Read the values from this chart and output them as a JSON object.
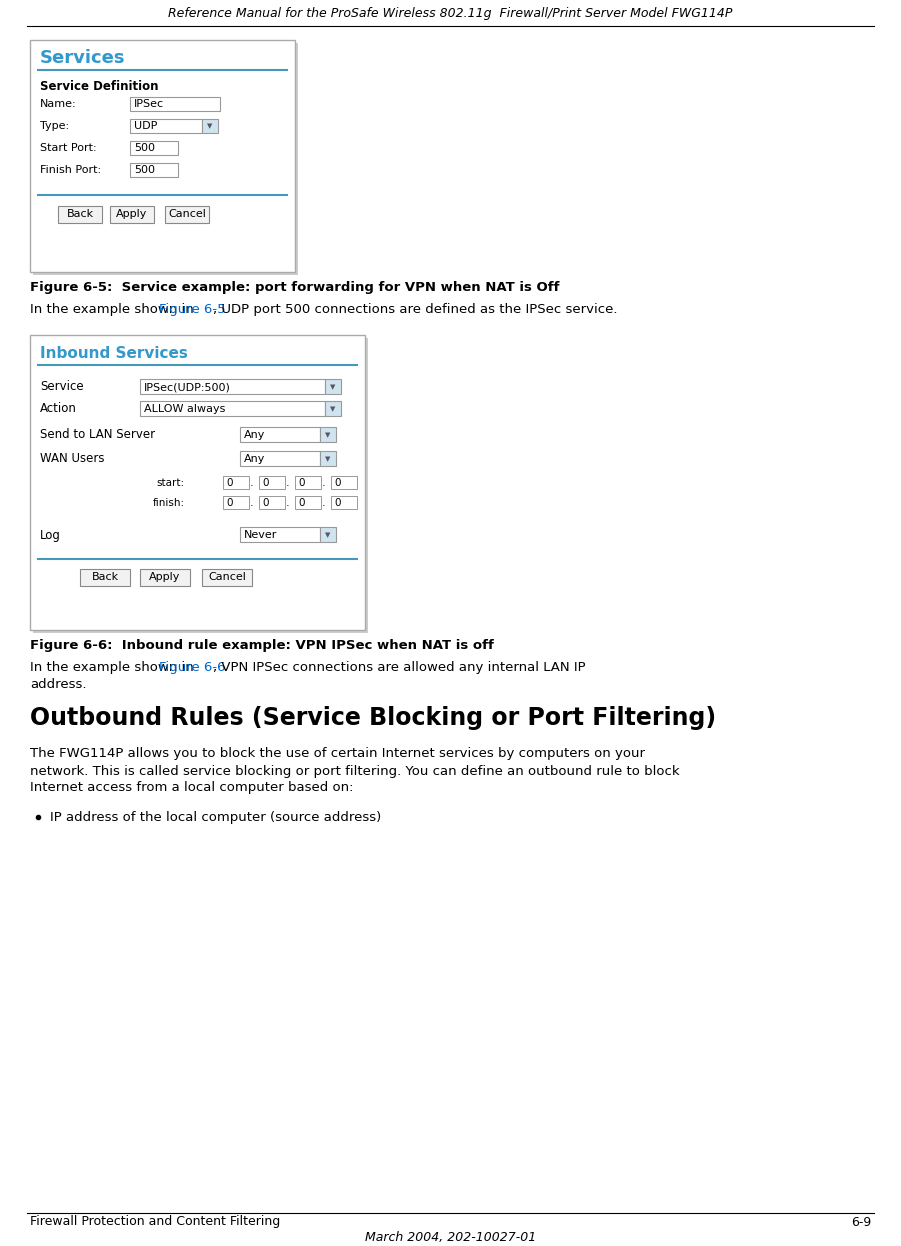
{
  "header_text": "Reference Manual for the ProSafe Wireless 802.11g  Firewall/Print Server Model FWG114P",
  "footer_left": "Firewall Protection and Content Filtering",
  "footer_right": "6-9",
  "footer_center": "March 2004, 202-10027-01",
  "fig1_caption": "Figure 6-5:  Service example: port forwarding for VPN when NAT is Off",
  "fig2_caption": "Figure 6-6:  Inbound rule example: VPN IPSec when NAT is off",
  "section_title": "Outbound Rules (Service Blocking or Port Filtering)",
  "para3_lines": [
    "The FWG114P allows you to block the use of certain Internet services by computers on your",
    "network. This is called service blocking or port filtering. You can define an outbound rule to block",
    "Internet access from a local computer based on:"
  ],
  "bullet1": "IP address of the local computer (source address)",
  "link_color": "#0066cc",
  "box_border_color": "#aaaaaa",
  "box_bg": "#ffffff",
  "blue_line_color": "#4499bb",
  "title_blue": "#3399cc",
  "dropdown_bg": "#d0e4f0",
  "bg_color": "#ffffff",
  "shadow_color": "#cccccc"
}
